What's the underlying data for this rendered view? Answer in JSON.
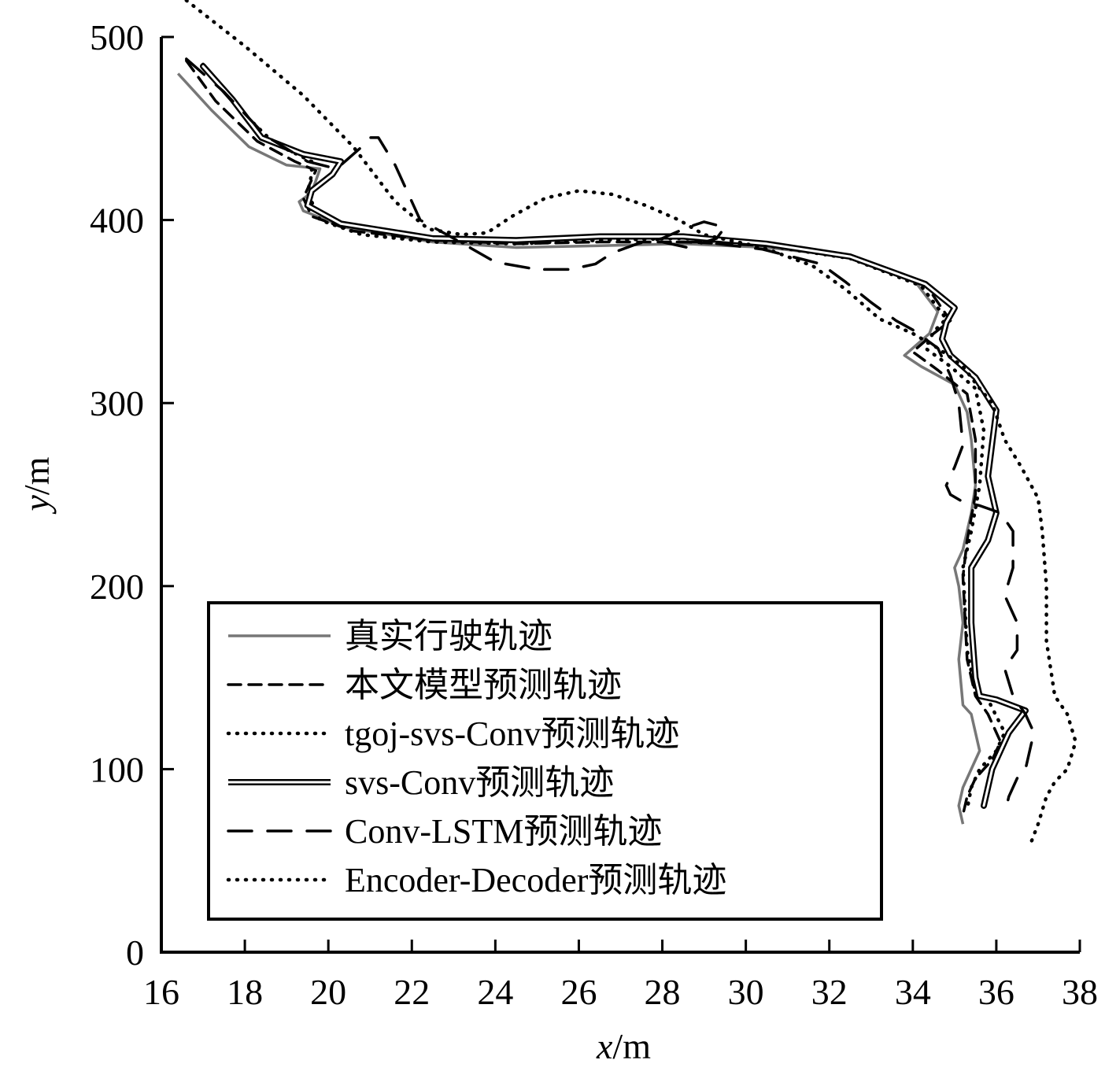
{
  "chart_data": {
    "type": "line",
    "xlabel": {
      "var": "x",
      "unit": "/m"
    },
    "ylabel": {
      "var": "y",
      "unit": "/m"
    },
    "xlim": [
      16,
      38
    ],
    "ylim": [
      0,
      500
    ],
    "x_ticks": [
      16,
      18,
      20,
      22,
      24,
      26,
      28,
      30,
      32,
      34,
      36,
      38
    ],
    "y_ticks": [
      0,
      100,
      200,
      300,
      400,
      500
    ],
    "legend_position": "lower-left",
    "series": [
      {
        "name": "真实行驶轨迹",
        "style": "solid-gray",
        "color": "#777777",
        "x": [
          16.4,
          17.2,
          18.1,
          19.0,
          19.8,
          19.6,
          19.3,
          19.4,
          20.4,
          22.5,
          24.5,
          26.5,
          28.5,
          30.5,
          32.5,
          34.0,
          34.6,
          34.4,
          33.8,
          34.2,
          35.0,
          35.3,
          35.4,
          35.5,
          35.4,
          35.2,
          35.0,
          35.1,
          35.2,
          35.1,
          35.2,
          35.4,
          35.5,
          35.6,
          35.4,
          35.2,
          35.1,
          35.2
        ],
        "y": [
          480,
          460,
          440,
          430,
          428,
          415,
          410,
          405,
          396,
          388,
          385,
          386,
          387,
          385,
          380,
          368,
          350,
          338,
          326,
          320,
          310,
          295,
          280,
          255,
          240,
          220,
          210,
          200,
          180,
          160,
          135,
          130,
          120,
          110,
          100,
          90,
          80,
          70
        ]
      },
      {
        "name": "本文模型预测轨迹",
        "style": "dashed",
        "color": "#000000",
        "x": [
          16.6,
          17.3,
          18.3,
          19.2,
          19.7,
          19.4,
          19.6,
          20.6,
          22.5,
          24.5,
          26.5,
          28.5,
          30.5,
          32.5,
          34.3,
          34.9,
          34.5,
          34.0,
          34.6,
          35.3,
          35.5,
          35.5,
          35.3,
          35.2,
          35.3,
          35.5,
          35.8,
          36.1,
          35.9,
          35.5,
          35.3,
          35.2
        ],
        "y": [
          487,
          465,
          443,
          432,
          427,
          412,
          402,
          394,
          389,
          387,
          388,
          388,
          386,
          380,
          365,
          345,
          338,
          328,
          318,
          305,
          280,
          250,
          225,
          205,
          160,
          140,
          130,
          115,
          105,
          95,
          85,
          75
        ]
      },
      {
        "name": "tgoj-svs-Conv预测轨迹",
        "style": "dotted",
        "color": "#000000",
        "x": [
          17.0,
          17.8,
          18.7,
          19.6,
          19.6,
          19.5,
          19.8,
          20.8,
          22.5,
          24.5,
          26.5,
          28.5,
          30.5,
          32.5,
          34.2,
          34.8,
          34.5,
          34.3,
          34.9,
          35.5,
          35.7,
          35.6,
          35.4,
          35.2,
          35.3,
          35.5,
          35.8,
          36.2,
          36.0,
          35.6,
          35.4,
          35.3
        ],
        "y": [
          485,
          462,
          442,
          432,
          425,
          415,
          400,
          392,
          388,
          387,
          389,
          390,
          386,
          379,
          364,
          346,
          339,
          330,
          320,
          308,
          285,
          255,
          230,
          210,
          165,
          142,
          138,
          120,
          110,
          100,
          90,
          78
        ]
      },
      {
        "name": "svs-Conv预测轨迹",
        "style": "double",
        "color": "#000000",
        "x": [
          17.0,
          17.7,
          18.4,
          19.4,
          20.3,
          20.1,
          19.6,
          19.5,
          20.3,
          22.5,
          24.5,
          26.5,
          28.5,
          30.5,
          32.5,
          34.3,
          35.0,
          34.8,
          34.7,
          34.9,
          35.5,
          36.0,
          35.8,
          36.0,
          35.8,
          35.4,
          35.4,
          35.5,
          35.6,
          36.0,
          36.7,
          36.3,
          35.9,
          35.7
        ],
        "y": [
          484,
          466,
          445,
          436,
          432,
          425,
          416,
          408,
          398,
          390,
          389,
          391,
          391,
          387,
          380,
          365,
          352,
          344,
          335,
          326,
          314,
          296,
          260,
          240,
          225,
          210,
          180,
          150,
          140,
          138,
          132,
          120,
          100,
          80
        ]
      },
      {
        "name": "Conv-LSTM预测轨迹",
        "style": "long-dashed",
        "color": "#000000",
        "x": [
          16.6,
          17.5,
          18.5,
          19.5,
          20.2,
          20.8,
          21.0,
          21.2,
          21.6,
          22.2,
          23.0,
          24.0,
          25.0,
          25.8,
          26.4,
          26.8,
          27.4,
          28.0,
          28.6,
          29.0,
          29.5,
          29.3,
          28.6,
          28.0,
          29.0,
          30.4,
          31.8,
          32.4,
          33.0,
          33.6,
          34.0,
          34.6,
          34.9,
          35.1,
          35.2,
          35.0,
          34.8,
          34.9,
          35.2,
          35.6,
          36.1,
          36.4,
          36.4,
          36.2,
          36.3,
          36.5,
          36.5,
          36.2,
          36.4,
          36.7,
          36.9,
          36.7,
          36.5,
          36.3,
          36.2
        ],
        "y": [
          488,
          470,
          446,
          432,
          428,
          440,
          445,
          445,
          430,
          400,
          390,
          377,
          373,
          373,
          376,
          382,
          387,
          390,
          396,
          399,
          396,
          390,
          385,
          388,
          388,
          384,
          376,
          366,
          355,
          345,
          340,
          330,
          315,
          300,
          277,
          265,
          255,
          250,
          246,
          244,
          240,
          230,
          210,
          195,
          190,
          180,
          165,
          155,
          140,
          130,
          120,
          100,
          95,
          85,
          75
        ]
      },
      {
        "name": "Encoder-Decoder预测轨迹",
        "style": "dotted",
        "color": "#000000",
        "x": [
          16.6,
          18.0,
          19.4,
          20.6,
          21.6,
          22.4,
          23.2,
          23.8,
          24.4,
          25.2,
          26.0,
          26.8,
          27.6,
          28.4,
          29.0,
          29.4,
          30.4,
          31.6,
          32.4,
          33.2,
          34.0,
          34.6,
          35.2,
          35.6,
          35.9,
          36.2,
          36.6,
          37.0,
          37.1,
          37.2,
          37.2,
          37.4,
          37.7,
          37.9,
          37.7,
          37.4,
          37.2,
          37.0,
          36.8
        ],
        "y": [
          520,
          495,
          468,
          440,
          410,
          395,
          392,
          393,
          402,
          412,
          416,
          414,
          408,
          400,
          392,
          390,
          385,
          375,
          362,
          346,
          338,
          330,
          320,
          308,
          300,
          280,
          265,
          248,
          230,
          200,
          170,
          140,
          130,
          115,
          100,
          93,
          85,
          70,
          58
        ]
      }
    ]
  }
}
